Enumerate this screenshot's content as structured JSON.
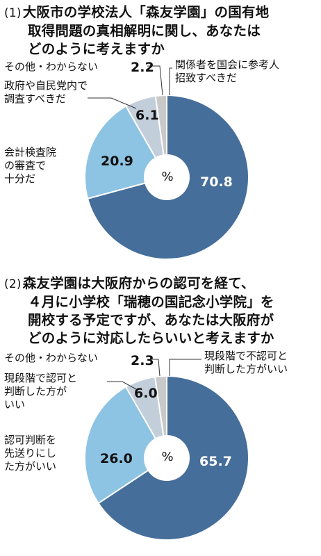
{
  "colors": {
    "dark": "#466e9a",
    "light": "#8ec4e3",
    "pale": "#c3cedb",
    "gray": "#c9c9c9",
    "stroke": "#ffffff"
  },
  "chart_data": [
    {
      "type": "pie",
      "number": "(1)",
      "title_lines": [
        "大阪市の学校法人「森友学園」の国有地",
        "取得問題の真相解明に関し、あなたは",
        "どのように考えますか"
      ],
      "center_label": "%",
      "slices": [
        {
          "label": "関係者を国会に参考人\n招致すべきだ",
          "value": 70.8,
          "value_text": "70.8",
          "color": "dark"
        },
        {
          "label": "会計検査院\nの審査で\n十分だ",
          "value": 20.9,
          "value_text": "20.9",
          "color": "light"
        },
        {
          "label": "政府や自民党内で\n調査すべきだ",
          "value": 6.1,
          "value_text": "6.1",
          "color": "pale"
        },
        {
          "label": "その他・わからない",
          "value": 2.2,
          "value_text": "2.2",
          "color": "gray"
        }
      ]
    },
    {
      "type": "pie",
      "number": "(2)",
      "title_lines": [
        "森友学園は大阪府からの認可を経て、",
        "４月に小学校「瑞穂の国記念小学院」を",
        "開校する予定ですが、あなたは大阪府が",
        "どのように対応したらいいと考えますか"
      ],
      "center_label": "%",
      "slices": [
        {
          "label": "現段階で不認可と\n判断した方がいい",
          "value": 65.7,
          "value_text": "65.7",
          "color": "dark"
        },
        {
          "label": "認可判断を\n先送りにし\nた方がいい",
          "value": 26.0,
          "value_text": "26.0",
          "color": "light"
        },
        {
          "label": "現段階で認可と\n判断した方が\nいい",
          "value": 6.0,
          "value_text": "6.0",
          "color": "pale"
        },
        {
          "label": "その他・わからない",
          "value": 2.3,
          "value_text": "2.3",
          "color": "gray"
        }
      ]
    }
  ]
}
